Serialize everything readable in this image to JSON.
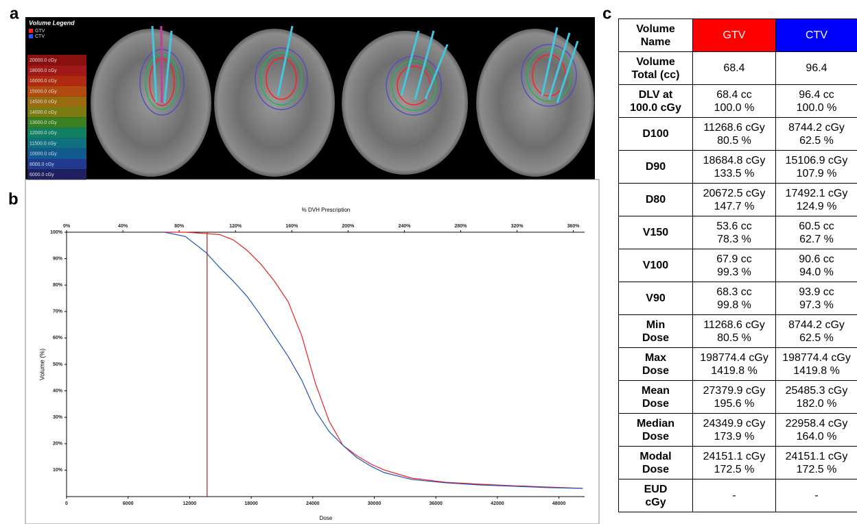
{
  "panel_labels": [
    "a",
    "b",
    "c"
  ],
  "panel_a": {
    "legend_title": "Volume Legend",
    "structures": [
      {
        "name": "GTV",
        "color": "#ff2020"
      },
      {
        "name": "CTV",
        "color": "#3050ff"
      }
    ],
    "isodose_levels": [
      {
        "label": "20000.0 cGy",
        "color": "#8a1010"
      },
      {
        "label": "18000.0 cGy",
        "color": "#a01818"
      },
      {
        "label": "16000.0 cGy",
        "color": "#b02a10"
      },
      {
        "label": "15000.0 cGy",
        "color": "#b04a10"
      },
      {
        "label": "14500.0 cGy",
        "color": "#9a6a10"
      },
      {
        "label": "14000.0 cGy",
        "color": "#7a7a10"
      },
      {
        "label": "13000.0 cGy",
        "color": "#3a8020"
      },
      {
        "label": "12000.0 cGy",
        "color": "#108060"
      },
      {
        "label": "11500.0 cGy",
        "color": "#107080"
      },
      {
        "label": "10000.0 cGy",
        "color": "#105a90"
      },
      {
        "label": "8000.0 cGy",
        "color": "#203a90"
      },
      {
        "label": "6000.0 cGy",
        "color": "#202060"
      }
    ]
  },
  "chart_data": {
    "type": "line",
    "title": "% DVH Prescription",
    "x_label": "Dose",
    "y_label": "Volume (%)",
    "x": [
      9560,
      11570,
      13570,
      14910,
      16250,
      17580,
      18920,
      20260,
      21590,
      22930,
      24270,
      25600,
      26940,
      28280,
      29620,
      30950,
      33630,
      36970,
      40310,
      43650,
      46990,
      50330
    ],
    "series": [
      {
        "name": "GTV",
        "color": "#e82020",
        "values": [
          100,
          100,
          99.5,
          99.1,
          97.1,
          93.2,
          88.0,
          81.5,
          73.8,
          60.8,
          42.7,
          28.5,
          19.4,
          15.5,
          12.4,
          10.1,
          7.0,
          5.4,
          4.7,
          4.1,
          3.6,
          3.1
        ]
      },
      {
        "name": "CTV",
        "color": "#2050c0",
        "values": [
          100,
          98.4,
          92.4,
          86.7,
          81.5,
          75.8,
          68.6,
          60.8,
          53.1,
          44.0,
          32.4,
          24.6,
          19.4,
          14.8,
          11.6,
          9.1,
          6.5,
          5.2,
          4.4,
          3.9,
          3.4,
          3.1
        ]
      }
    ],
    "xlim": [
      0,
      50500
    ],
    "xticks": [
      0,
      6000,
      12000,
      18000,
      24000,
      30000,
      36000,
      42000,
      48000
    ],
    "x2lim": [
      0,
      368
    ],
    "x2ticks": [
      {
        "value": 0,
        "label": "0%"
      },
      {
        "value": 40,
        "label": "40%"
      },
      {
        "value": 80,
        "label": "80%"
      },
      {
        "value": 120,
        "label": "120%"
      },
      {
        "value": 160,
        "label": "160%"
      },
      {
        "value": 200,
        "label": "200%"
      },
      {
        "value": 240,
        "label": "240%"
      },
      {
        "value": 280,
        "label": "280%"
      },
      {
        "value": 320,
        "label": "320%"
      },
      {
        "value": 360,
        "label": "360%"
      }
    ],
    "ylim": [
      0,
      100
    ],
    "yticks": [
      {
        "value": 10,
        "label": "10%"
      },
      {
        "value": 20,
        "label": "20%"
      },
      {
        "value": 30,
        "label": "30%"
      },
      {
        "value": 40,
        "label": "40%"
      },
      {
        "value": 50,
        "label": "50%"
      },
      {
        "value": 60,
        "label": "60%"
      },
      {
        "value": 70,
        "label": "70%"
      },
      {
        "value": 80,
        "label": "80%"
      },
      {
        "value": 90,
        "label": "90%"
      },
      {
        "value": 100,
        "label": "100%"
      }
    ],
    "reference_line": {
      "x": 13700,
      "color": "#a02020"
    }
  },
  "table": {
    "columns": [
      {
        "label": "Volume\nName"
      },
      {
        "label": "GTV",
        "color": "#ff0000"
      },
      {
        "label": "CTV",
        "color": "#0000ff"
      }
    ],
    "rows": [
      [
        "Volume\nTotal (cc)",
        "68.4",
        "96.4"
      ],
      [
        "DLV at\n100.0 cGy",
        "68.4 cc\n100.0 %",
        "96.4 cc\n100.0 %"
      ],
      [
        "D100",
        "11268.6 cGy\n80.5 %",
        "8744.2 cGy\n62.5 %"
      ],
      [
        "D90",
        "18684.8 cGy\n133.5 %",
        "15106.9 cGy\n107.9 %"
      ],
      [
        "D80",
        "20672.5 cGy\n147.7 %",
        "17492.1 cGy\n124.9 %"
      ],
      [
        "V150",
        "53.6 cc\n78.3 %",
        "60.5 cc\n62.7 %"
      ],
      [
        "V100",
        "67.9 cc\n99.3 %",
        "90.6 cc\n94.0 %"
      ],
      [
        "V90",
        "68.3 cc\n99.8 %",
        "93.9 cc\n97.3 %"
      ],
      [
        "Min\nDose",
        "11268.6 cGy\n80.5 %",
        "8744.2 cGy\n62.5 %"
      ],
      [
        "Max\nDose",
        "198774.4 cGy\n1419.8 %",
        "198774.4 cGy\n1419.8 %"
      ],
      [
        "Mean\nDose",
        "27379.9 cGy\n195.6 %",
        "25485.3 cGy\n182.0 %"
      ],
      [
        "Median\nDose",
        "24349.9 cGy\n173.9 %",
        "22958.4 cGy\n164.0 %"
      ],
      [
        "Modal\nDose",
        "24151.1 cGy\n172.5 %",
        "24151.1 cGy\n172.5 %"
      ],
      [
        "EUD\ncGy",
        "-",
        "-"
      ]
    ]
  }
}
